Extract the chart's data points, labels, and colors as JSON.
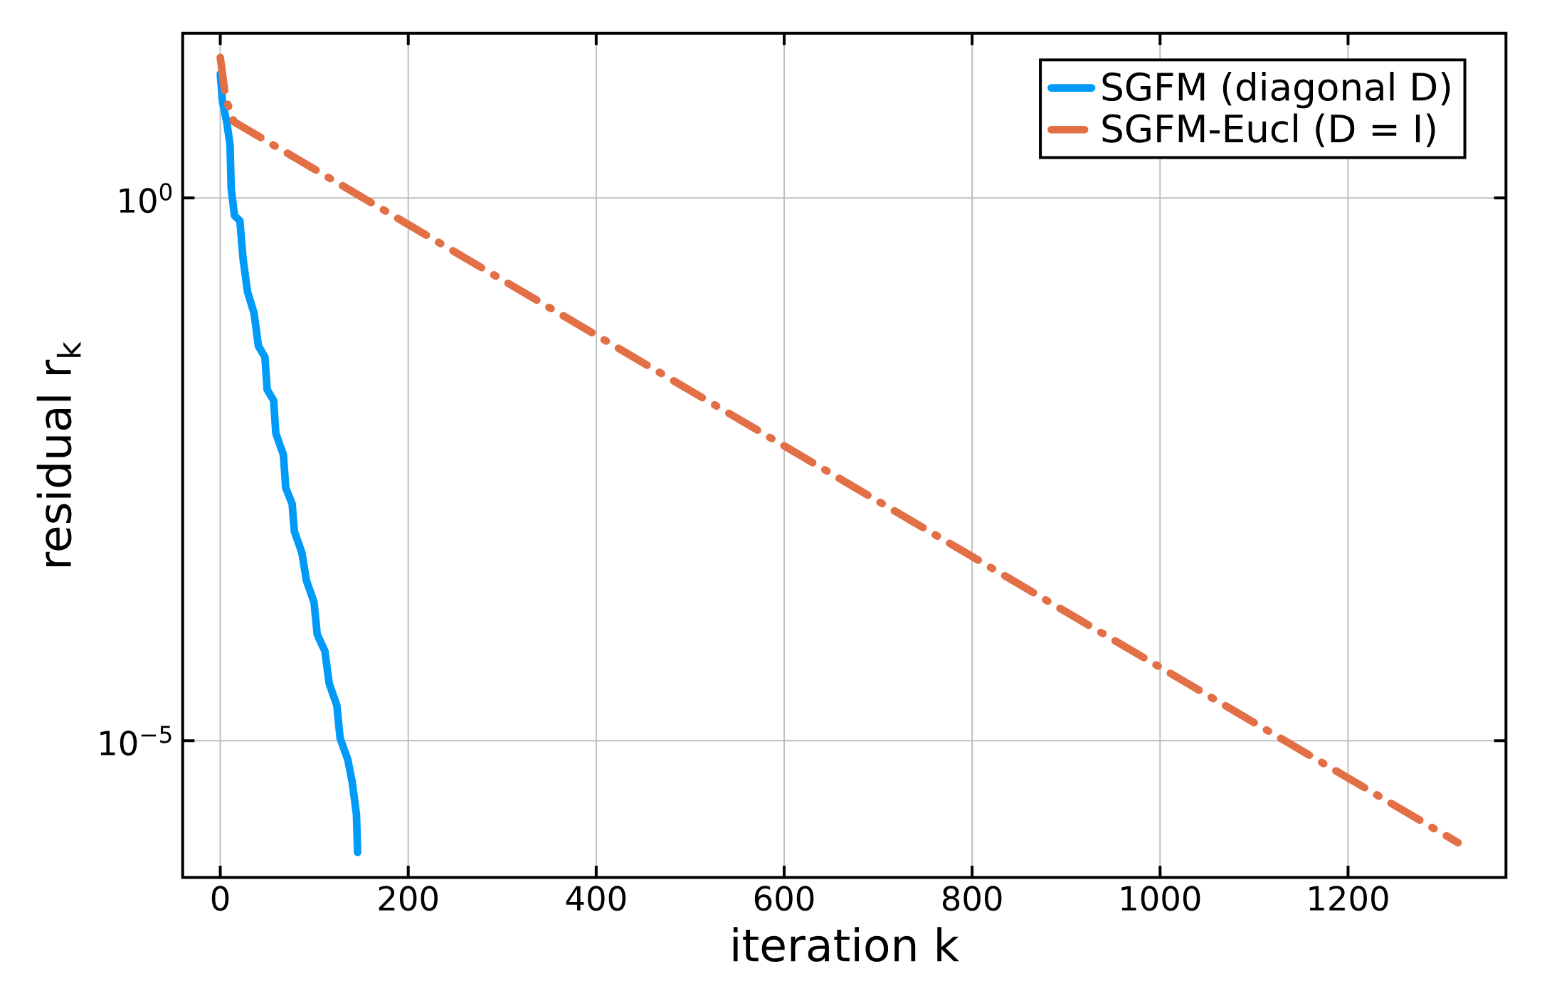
{
  "chart_data": {
    "type": "line",
    "xlabel": "iteration k",
    "ylabel": "residual r$_{k}$",
    "log": "y",
    "grid": true,
    "legend": "top right",
    "xlim": [
      -40,
      1368
    ],
    "ylim": [
      5.5e-07,
      33
    ],
    "xticks": [
      0,
      200,
      400,
      600,
      800,
      1000,
      1200
    ],
    "yticks": [
      {
        "value": 1,
        "label": "10$^{0}$"
      },
      {
        "value": 1e-05,
        "label": "10$^{−5}$"
      }
    ],
    "series": [
      {
        "name": "SGFM (diagonal D)",
        "color": "#009af9",
        "line_style": "solid",
        "x": [
          0,
          2.3,
          7,
          10.4,
          11.6,
          15.1,
          20.9,
          24.3,
          29,
          36,
          40.6,
          47.5,
          49.9,
          56.8,
          59.1,
          67.2,
          69.6,
          76.5,
          78.8,
          86.9,
          91.6,
          99.7,
          103.2,
          111.3,
          115.9,
          124,
          127.5,
          135.7,
          140.3,
          144.9,
          146.1
        ],
        "values": [
          13.9,
          7.82,
          4.92,
          3.1,
          1.23,
          0.69,
          0.615,
          0.274,
          0.137,
          0.0865,
          0.0433,
          0.0344,
          0.0172,
          0.0136,
          0.00682,
          0.0043,
          0.00215,
          0.00152,
          0.000853,
          0.000537,
          0.000301,
          0.00019,
          9.51e-05,
          6.71e-05,
          3.37e-05,
          2.12e-05,
          1.06e-05,
          6.68e-06,
          4.21e-06,
          2.1e-06,
          9.37e-07
        ]
      },
      {
        "name": "SGFM-Eucl (D = I)",
        "color": "#e26f46",
        "line_style": "dashed",
        "x": [
          0,
          5.8,
          14.5,
          1317
        ],
        "values": [
          19.7,
          8.28,
          5.04,
          1.15e-06
        ]
      }
    ]
  }
}
